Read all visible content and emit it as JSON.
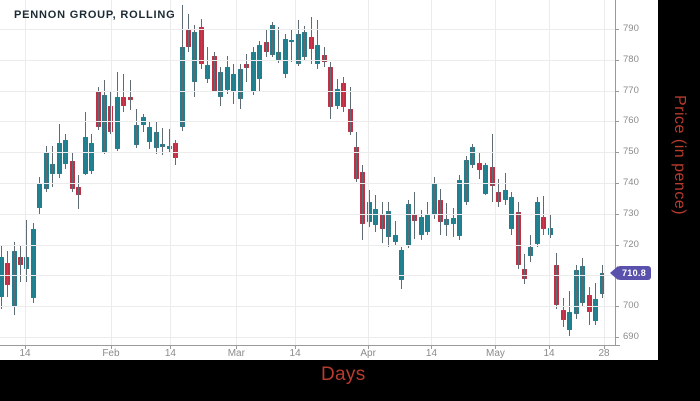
{
  "title": "PENNON GROUP, ROLLING",
  "price_badge": {
    "value": "710.8"
  },
  "axes": {
    "x_label": "Days",
    "y_label": "Price (in pence)"
  },
  "colors": {
    "up": "#1f7f8e",
    "down": "#c12f45",
    "wick": "#5f6b73",
    "badge": "#5a51ad",
    "axis_title_red": "#b83b2d",
    "tick_label_gray": "#8b8b8b",
    "title_dark": "#1b2a33"
  },
  "chart_data": {
    "type": "candlestick",
    "title": "PENNON GROUP, ROLLING",
    "xlabel": "Days",
    "ylabel": "Price (in pence)",
    "series_name": "PENNON GROUP",
    "last_price": 710.8,
    "ylim": [
      687.4,
      799.4
    ],
    "grid": true,
    "y_ticks": [
      690,
      700,
      710,
      720,
      730,
      740,
      750,
      760,
      770,
      780,
      790
    ],
    "x_ticks": [
      {
        "label": "14",
        "i": 3.7
      },
      {
        "label": "Feb",
        "i": 17
      },
      {
        "label": "14",
        "i": 26.2
      },
      {
        "label": "Mar",
        "i": 36.4
      },
      {
        "label": "14",
        "i": 45.5
      },
      {
        "label": "Apr",
        "i": 56.8
      },
      {
        "label": "14",
        "i": 66.6
      },
      {
        "label": "May",
        "i": 76.5
      },
      {
        "label": "14",
        "i": 84.8
      },
      {
        "label": "28",
        "i": 93.3
      }
    ],
    "candles_format": [
      "open",
      "high",
      "low",
      "close"
    ],
    "candles": [
      [
        703,
        720,
        699,
        716
      ],
      [
        714,
        718,
        703,
        707
      ],
      [
        700,
        721,
        697,
        718
      ],
      [
        716,
        720,
        708,
        713.5
      ],
      [
        712,
        728,
        708,
        716
      ],
      [
        702.5,
        727,
        701,
        725
      ],
      [
        732,
        742,
        729.5,
        740
      ],
      [
        738,
        752,
        737,
        750
      ],
      [
        743,
        752,
        738.8,
        746
      ],
      [
        743,
        759,
        741.6,
        753
      ],
      [
        746,
        756,
        744.4,
        754
      ],
      [
        747,
        750,
        737,
        738.2
      ],
      [
        738.8,
        742.5,
        731.7,
        736.1
      ],
      [
        743,
        763,
        742.5,
        755
      ],
      [
        744,
        756,
        743,
        753
      ],
      [
        770,
        771.2,
        757.1,
        758.2
      ],
      [
        750,
        773.4,
        749.5,
        768.4
      ],
      [
        765,
        769.5,
        756,
        756.6
      ],
      [
        751,
        776,
        750.5,
        767.8
      ],
      [
        767.8,
        775.5,
        763,
        765.1
      ],
      [
        768,
        773.4,
        763.7,
        767
      ],
      [
        752.3,
        764.1,
        751.2,
        758.8
      ],
      [
        758.8,
        762.4,
        756.6,
        761.4
      ],
      [
        753.2,
        760,
        751,
        758.2
      ],
      [
        751.2,
        760,
        749.5,
        756.6
      ],
      [
        751.6,
        758,
        749,
        752.8
      ],
      [
        751,
        757.6,
        749.6,
        751.9
      ],
      [
        752.9,
        754,
        745.7,
        748
      ],
      [
        758.2,
        797.7,
        757,
        784.2
      ],
      [
        789.6,
        795,
        782.5,
        784.2
      ],
      [
        772.8,
        791.2,
        767.8,
        789
      ],
      [
        790.6,
        793.3,
        777.1,
        778.7
      ],
      [
        773.9,
        784,
        772.3,
        778.2
      ],
      [
        781.3,
        782.5,
        769.5,
        770
      ],
      [
        767.9,
        777.7,
        765.1,
        776
      ],
      [
        770.1,
        781.3,
        769,
        777.7
      ],
      [
        769.5,
        778.7,
        765.7,
        775.5
      ],
      [
        767.4,
        778.7,
        764.1,
        777.1
      ],
      [
        778.7,
        782,
        772.8,
        777.4
      ],
      [
        769.5,
        784,
        768.5,
        782.5
      ],
      [
        773.9,
        786,
        770,
        784.7
      ],
      [
        785.8,
        789.6,
        781,
        782.5
      ],
      [
        781.5,
        792.3,
        781,
        791.2
      ],
      [
        779.9,
        790.6,
        779,
        782.5
      ],
      [
        775.5,
        788.5,
        774,
        786.9
      ],
      [
        786,
        789.6,
        779.3,
        786.4
      ],
      [
        778.7,
        792.8,
        778,
        788.5
      ],
      [
        780.9,
        791,
        780,
        789
      ],
      [
        787.4,
        793.9,
        778.7,
        783.6
      ],
      [
        778.7,
        792.8,
        777.1,
        784.7
      ],
      [
        781.5,
        784,
        777.7,
        779.3
      ],
      [
        777.7,
        779.3,
        760.9,
        764.7
      ],
      [
        765.1,
        773.9,
        764.1,
        770.6
      ],
      [
        772.3,
        774.4,
        763,
        764.7
      ],
      [
        764.1,
        771.2,
        755.5,
        756.6
      ],
      [
        751.7,
        756.6,
        740.3,
        741.4
      ],
      [
        743.6,
        745.7,
        721.4,
        726.8
      ],
      [
        727.3,
        737.6,
        725.7,
        733.8
      ],
      [
        726.5,
        736,
        724,
        731.7
      ],
      [
        729.5,
        733.9,
        720.6,
        725.2
      ],
      [
        722.6,
        733.8,
        719.2,
        731
      ],
      [
        720.9,
        727.5,
        719.8,
        723.2
      ],
      [
        708.4,
        719.2,
        705.5,
        718.1
      ],
      [
        719.7,
        734.4,
        719,
        733.3
      ],
      [
        729.8,
        737,
        721.9,
        727.5
      ],
      [
        723.1,
        731.1,
        721.4,
        728.9
      ],
      [
        724.1,
        733.8,
        723.1,
        729.5
      ],
      [
        729.5,
        741.9,
        728.4,
        739.8
      ],
      [
        734.4,
        738.1,
        723.1,
        727.3
      ],
      [
        726.3,
        733.5,
        722.9,
        728.4
      ],
      [
        726.8,
        731.9,
        722.6,
        728.6
      ],
      [
        722.9,
        742.7,
        721.5,
        741.1
      ],
      [
        733.8,
        748.8,
        732.7,
        747.3
      ],
      [
        745.7,
        752.5,
        744.9,
        751.7
      ],
      [
        746.5,
        749.7,
        741.2,
        744.1
      ],
      [
        736.5,
        746.5,
        736,
        745.7
      ],
      [
        745.2,
        756,
        733.8,
        739
      ],
      [
        737,
        741.4,
        732.1,
        733.8
      ],
      [
        734.4,
        743.4,
        732.7,
        737.6
      ],
      [
        724.9,
        737,
        723.1,
        735.4
      ],
      [
        730.6,
        733.8,
        712.2,
        713.3
      ],
      [
        712.2,
        717.1,
        707.3,
        708.9
      ],
      [
        716.3,
        723.1,
        714.5,
        719.2
      ],
      [
        720.2,
        735.4,
        719.1,
        733.8
      ],
      [
        728.9,
        735.7,
        723.1,
        725.2
      ],
      [
        723.2,
        729.7,
        722.2,
        725.3
      ],
      [
        713.3,
        717.4,
        699,
        700.3
      ],
      [
        698.7,
        702.7,
        693.3,
        695.4
      ],
      [
        692.3,
        704.9,
        690.3,
        698.1
      ],
      [
        697.6,
        713.5,
        696,
        711.7
      ],
      [
        701,
        715.6,
        700,
        712.9
      ],
      [
        703.6,
        706.3,
        694,
        698.1
      ],
      [
        695.2,
        707.6,
        694,
        702.3
      ],
      [
        703.8,
        713.5,
        702.7,
        710.8
      ]
    ]
  }
}
